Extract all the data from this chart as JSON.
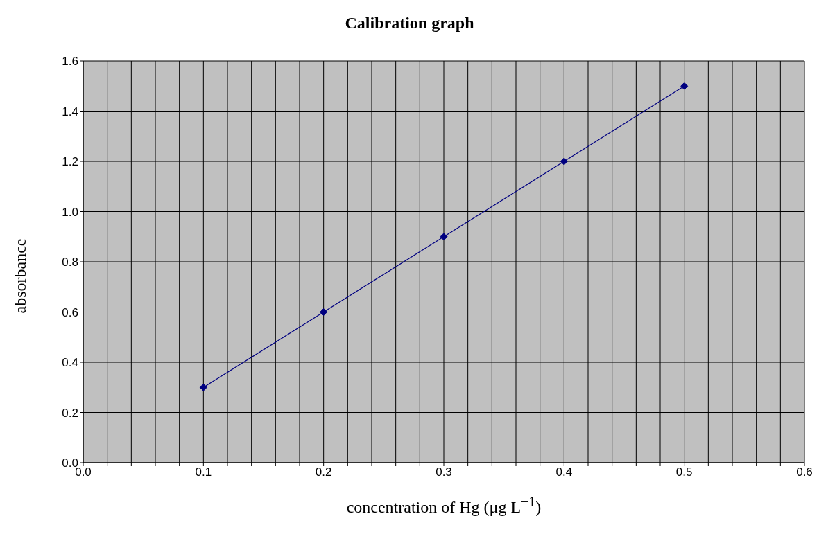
{
  "chart_data": {
    "type": "line",
    "title": "Calibration graph",
    "xlabel": "concentration of Hg (μg L$^{−1}$)",
    "ylabel": "absorbance",
    "x": [
      0.1,
      0.2,
      0.3,
      0.4,
      0.5
    ],
    "series": [
      {
        "color": "#000080",
        "values": [
          0.3,
          0.6,
          0.9,
          1.2,
          1.5
        ]
      }
    ],
    "xlim": [
      0,
      0.6
    ],
    "xticks": [
      {
        "value": 0,
        "label": "0.0"
      },
      {
        "value": 0.02,
        "label": null
      },
      {
        "value": 0.04,
        "label": null
      },
      {
        "value": 0.06,
        "label": null
      },
      {
        "value": 0.08,
        "label": null
      },
      {
        "value": 0.1,
        "label": "0.1"
      },
      {
        "value": 0.12,
        "label": null
      },
      {
        "value": 0.14,
        "label": null
      },
      {
        "value": 0.16,
        "label": null
      },
      {
        "value": 0.18,
        "label": null
      },
      {
        "value": 0.2,
        "label": "0.2"
      },
      {
        "value": 0.22,
        "label": null
      },
      {
        "value": 0.24,
        "label": null
      },
      {
        "value": 0.26,
        "label": null
      },
      {
        "value": 0.28,
        "label": null
      },
      {
        "value": 0.3,
        "label": "0.3"
      },
      {
        "value": 0.32,
        "label": null
      },
      {
        "value": 0.34,
        "label": null
      },
      {
        "value": 0.36,
        "label": null
      },
      {
        "value": 0.38,
        "label": null
      },
      {
        "value": 0.4,
        "label": "0.4"
      },
      {
        "value": 0.42,
        "label": null
      },
      {
        "value": 0.44,
        "label": null
      },
      {
        "value": 0.46,
        "label": null
      },
      {
        "value": 0.48,
        "label": null
      },
      {
        "value": 0.5,
        "label": "0.5"
      },
      {
        "value": 0.52,
        "label": null
      },
      {
        "value": 0.54,
        "label": null
      },
      {
        "value": 0.56,
        "label": null
      },
      {
        "value": 0.58,
        "label": null
      },
      {
        "value": 0.6,
        "label": "0.6"
      }
    ],
    "ylim": [
      0,
      1.6
    ],
    "yticks": [
      {
        "value": 0,
        "label": "0.0"
      },
      {
        "value": 0.2,
        "label": "0.2"
      },
      {
        "value": 0.4,
        "label": "0.4"
      },
      {
        "value": 0.6,
        "label": "0.6"
      },
      {
        "value": 0.8,
        "label": "0.8"
      },
      {
        "value": 1.0,
        "label": "1.0"
      },
      {
        "value": 1.2,
        "label": "1.2"
      },
      {
        "value": 1.4,
        "label": "1.4"
      },
      {
        "value": 1.6,
        "label": "1.6"
      }
    ],
    "grid": true,
    "marker": "diamond",
    "line_style": "solid"
  }
}
